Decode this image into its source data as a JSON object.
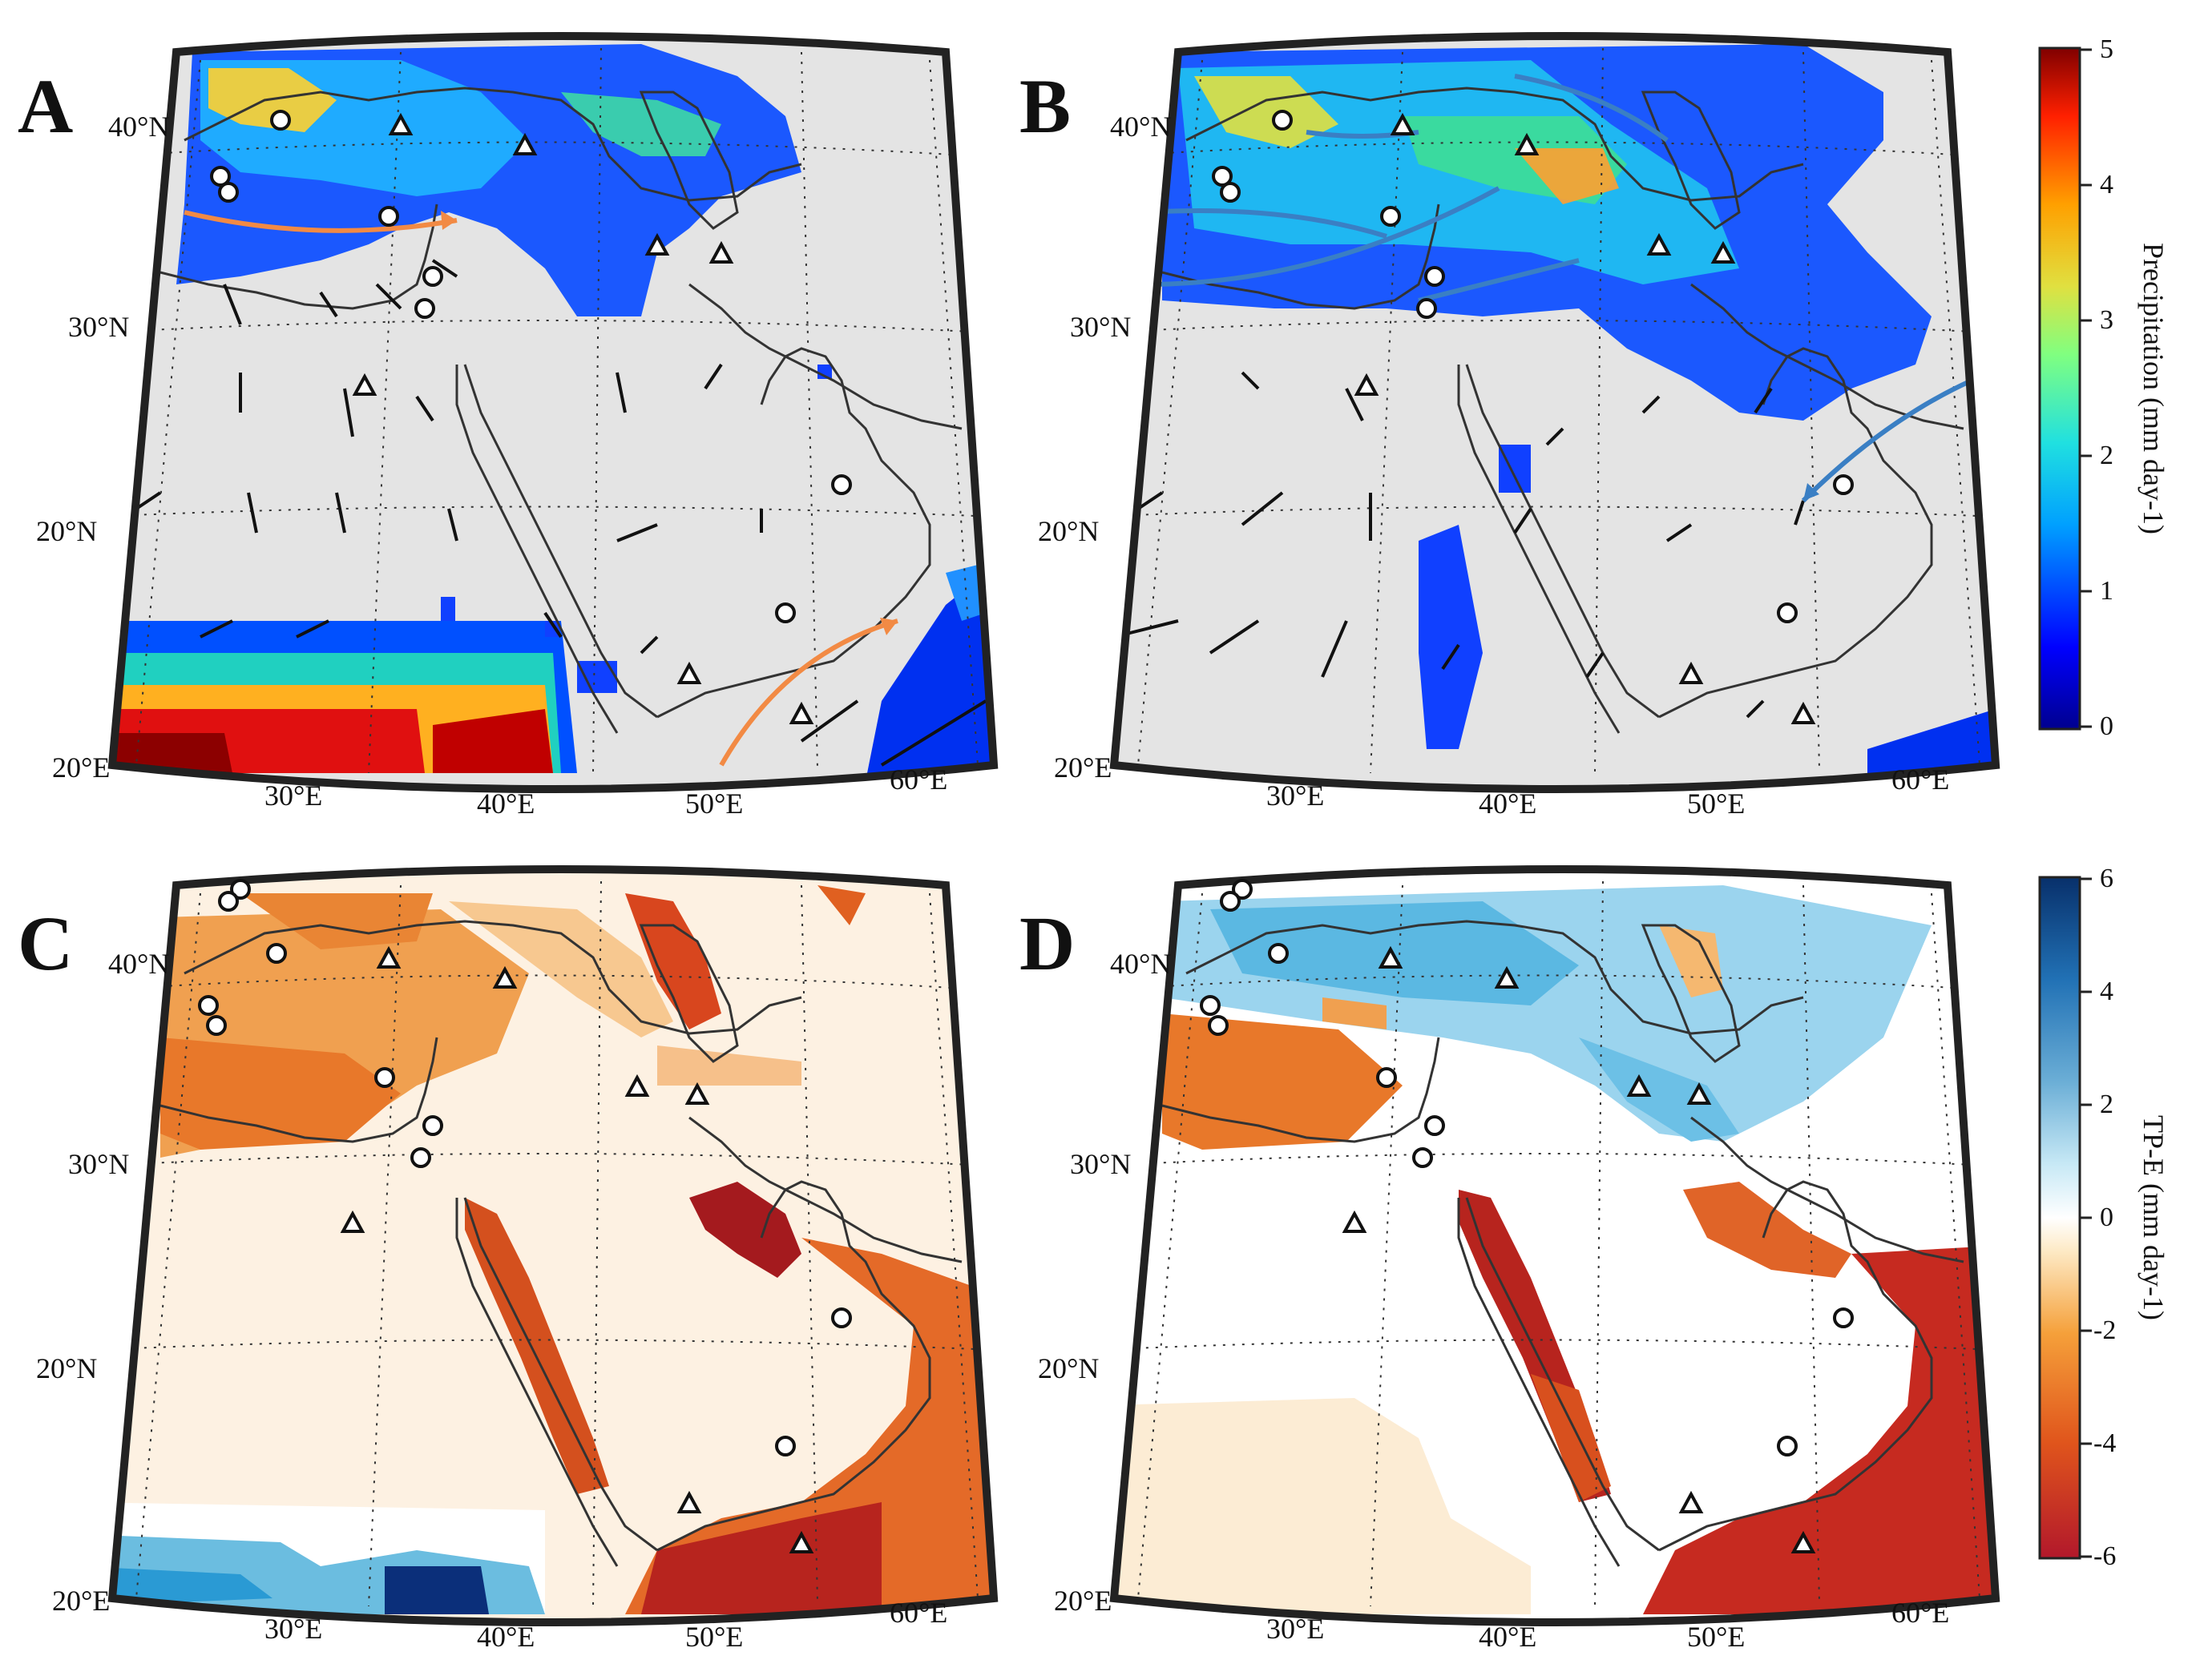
{
  "figure": {
    "panels": [
      {
        "id": "A",
        "letter": "A",
        "variable": "Precipitation"
      },
      {
        "id": "B",
        "letter": "B",
        "variable": "Precipitation"
      },
      {
        "id": "C",
        "letter": "C",
        "variable": "TP-E"
      },
      {
        "id": "D",
        "letter": "D",
        "variable": "TP-E"
      }
    ],
    "lat_labels": [
      "40°N",
      "30°N",
      "20°N"
    ],
    "lon_labels": [
      "20°E",
      "30°E",
      "40°E",
      "50°E",
      "60°E"
    ],
    "colorbars": [
      {
        "id": "precip",
        "title": "Precipitation (mm day-1)",
        "ticks": [
          "5",
          "4",
          "3",
          "2",
          "1",
          "0"
        ],
        "range": [
          0,
          5
        ],
        "colormap": "jet",
        "colors": [
          "#00008f",
          "#0000ff",
          "#00a0ff",
          "#20e0e0",
          "#80ff80",
          "#e0e040",
          "#ffa000",
          "#ff2000",
          "#800000"
        ]
      },
      {
        "id": "tpe",
        "title": "TP-E (mm day-1)",
        "ticks": [
          "6",
          "4",
          "2",
          "0",
          "-2",
          "-4",
          "-6"
        ],
        "range": [
          -6,
          6
        ],
        "colormap": "diverging blue-white-red",
        "colors": [
          "#08306b",
          "#2171b5",
          "#6baed6",
          "#c6e8f5",
          "#ffffff",
          "#fde9c4",
          "#f5a03a",
          "#e0551c",
          "#b2182b"
        ]
      }
    ],
    "markers": {
      "circle": "open circle site",
      "triangle": "open triangle site"
    },
    "colors": {
      "land_background": "#e4e4e4",
      "map_frame": "#222222",
      "coastline": "#333333",
      "wind_vector": "#111111",
      "trajectory_A": "#f28a44",
      "trajectory_B": "#3a7fc4"
    }
  }
}
